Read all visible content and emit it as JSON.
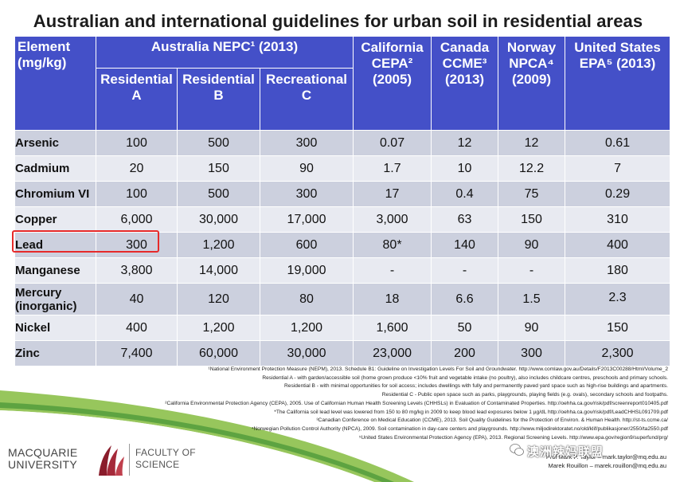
{
  "title": "Australian and international guidelines for urban soil in residential areas",
  "header": {
    "element": "Element\n(mg/kg)",
    "nepc": "Australia NEPC¹ (2013)",
    "california": "California\nCEPA²\n(2005)",
    "canada": "Canada\nCCME³\n(2013)",
    "norway": "Norway\nNPCA⁴\n(2009)",
    "us": "United States\nEPA⁵ (2013)",
    "res_a": "Residential\nA",
    "res_b": "Residential\nB",
    "rec_c": "Recreational\nC"
  },
  "rows": [
    {
      "element": "Arsenic",
      "a": "100",
      "b": "500",
      "c": "300",
      "cepa": "0.07",
      "ccme": "12",
      "npca": "12",
      "epa": "0.61"
    },
    {
      "element": "Cadmium",
      "a": "20",
      "b": "150",
      "c": "90",
      "cepa": "1.7",
      "ccme": "10",
      "npca": "12.2",
      "epa": "7"
    },
    {
      "element": "Chromium VI",
      "a": "100",
      "b": "500",
      "c": "300",
      "cepa": "17",
      "ccme": "0.4",
      "npca": "75",
      "epa": "0.29"
    },
    {
      "element": "Copper",
      "a": "6,000",
      "b": "30,000",
      "c": "17,000",
      "cepa": "3,000",
      "ccme": "63",
      "npca": "150",
      "epa": "310"
    },
    {
      "element": "Lead",
      "a": "300",
      "b": "1,200",
      "c": "600",
      "cepa": "80*",
      "ccme": "140",
      "npca": "90",
      "epa": "400"
    },
    {
      "element": "Manganese",
      "a": "3,800",
      "b": "14,000",
      "c": "19,000",
      "cepa": "-",
      "ccme": "-",
      "npca": "-",
      "epa": "180"
    },
    {
      "element": "Mercury\n(inorganic)",
      "a": "40",
      "b": "120",
      "c": "80",
      "cepa": "18",
      "ccme": "6.6",
      "npca": "1.5",
      "epa": "2.3"
    },
    {
      "element": "Nickel",
      "a": "400",
      "b": "1,200",
      "c": "1,200",
      "cepa": "1,600",
      "ccme": "50",
      "npca": "90",
      "epa": "150"
    },
    {
      "element": "Zinc",
      "a": "7,400",
      "b": "60,000",
      "c": "30,000",
      "cepa": "23,000",
      "ccme": "200",
      "npca": "300",
      "epa": "2,300"
    }
  ],
  "highlight_color": "#e62a2a",
  "header_color": "#4450c8",
  "footnotes": [
    "¹National Environment Protection Measure (NEPM), 2013. Schedule B1: Guideline on Investigation Levels For Soil and Groundwater. http://www.comlaw.gov.au/Details/F2013C00288/Html/Volume_2",
    "Residential A - with garden/accessible soil (home grown produce <10% fruit and vegetable intake (no poultry), also includes childcare centres, preschools and primary schools.",
    "Residential B - with minimal opportunities for soil access; includes dwellings with fully and permanently paved yard space such as high-rise buildings and apartments.",
    "Residential C - Public open space such as parks, playgrounds, playing fields (e.g. ovals), secondary schools and footpaths.",
    "²California Environmental Protection Agency (CEPA), 2005. Use of Californian Human Health Screening Levels (CHHSLs) in Evaluation of Contaminated Properties. http://oehha.ca.gov/risk/pdf/screenreport010405.pdf",
    "*The California soil lead level was lowered from 150 to 80 mg/kg in 2009 to keep blood lead exposures below 1 µg/dL http://oehha.ca.gov/risk/pdf/LeadCHHSL091709.pdf",
    "³Canadian Conference on Medical Education (CCME), 2013. Soil Quality Guidelines for the Protection of Environ. & Human Health. http://st-ts.ccme.ca/",
    "⁴Norwegian Pollution Control Authority (NPCA), 2009. Soil contamination in day-care centers and playgrounds. http://www.miljodirektoratet.no/old/klif/publikasjoner/2550/ta2550.pdf",
    "⁵United States Environmental Protection Agency (EPA), 2013. Regional Screening Levels. http://www.epa.gov/region9/superfund/prg/"
  ],
  "contact": [
    "Prof Mark P. Taylor – mark.taylor@mq.edu.au",
    "Marek Rouillon – marek.rouillon@mq.edu.au"
  ],
  "logo": {
    "university": "MACQUARIE\nUNIVERSITY",
    "faculty": "FACULTY OF\nSCIENCE"
  },
  "watermark": "澳洲辣妈联盟"
}
